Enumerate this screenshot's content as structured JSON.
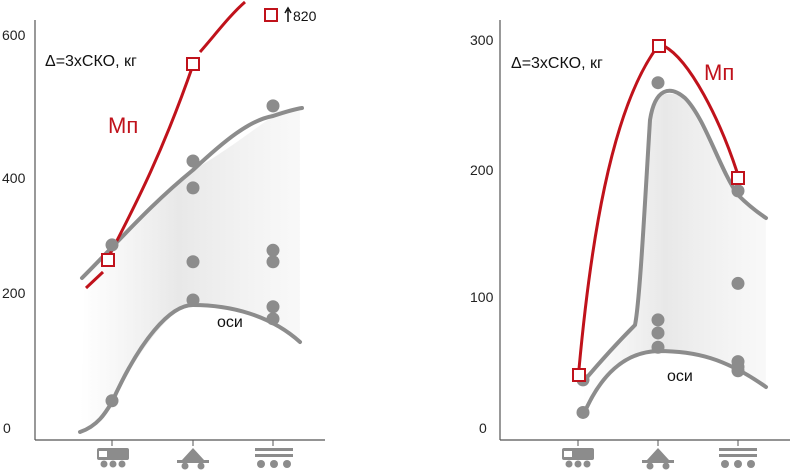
{
  "chart_data": [
    {
      "type": "line",
      "annotation": "Δ=3хСКО, кг",
      "ylim": [
        0,
        600
      ],
      "yticks": [
        "0",
        "200",
        "400",
        "600"
      ],
      "x_positions": [
        1,
        2,
        3
      ],
      "series": [
        {
          "name": "Мп",
          "x": [
            1,
            2
          ],
          "values": [
            268,
            568
          ]
        },
        {
          "name": "оси",
          "x": [
            1,
            2,
            3
          ],
          "values": [
            48,
            198,
            170
          ]
        }
      ],
      "upper_band": {
        "x": [
          1,
          2,
          3
        ],
        "values": [
          280,
          405,
          487
        ]
      },
      "scatter": [
        {
          "x": 1,
          "y": 48
        },
        {
          "x": 1,
          "y": 280
        },
        {
          "x": 2,
          "y": 405
        },
        {
          "x": 2,
          "y": 365
        },
        {
          "x": 2,
          "y": 255
        },
        {
          "x": 2,
          "y": 198
        },
        {
          "x": 3,
          "y": 487
        },
        {
          "x": 3,
          "y": 272
        },
        {
          "x": 3,
          "y": 255
        },
        {
          "x": 3,
          "y": 188
        },
        {
          "x": 3,
          "y": 170
        }
      ],
      "offchart_marker": {
        "label": "820",
        "value": 820
      }
    },
    {
      "type": "line",
      "annotation": "Δ=3хСКО, кг",
      "ylim": [
        0,
        300
      ],
      "yticks": [
        "0",
        "100",
        "200",
        "300"
      ],
      "x_positions": [
        1,
        2,
        3
      ],
      "series": [
        {
          "name": "Мп",
          "x": [
            1,
            2,
            3
          ],
          "values": [
            45,
            302,
            197
          ]
        },
        {
          "name": "оси",
          "x": [
            1,
            2,
            3
          ],
          "values": [
            40,
            65,
            50
          ]
        }
      ],
      "upper_band": {
        "x": [
          1,
          2,
          3
        ],
        "values": [
          40,
          268,
          185
        ]
      },
      "scatter": [
        {
          "x": 1,
          "y": 40
        },
        {
          "x": 1,
          "y": 15
        },
        {
          "x": 2,
          "y": 268
        },
        {
          "x": 2,
          "y": 86
        },
        {
          "x": 2,
          "y": 76
        },
        {
          "x": 2,
          "y": 65
        },
        {
          "x": 3,
          "y": 185
        },
        {
          "x": 3,
          "y": 114
        },
        {
          "x": 3,
          "y": 54
        },
        {
          "x": 3,
          "y": 50
        },
        {
          "x": 3,
          "y": 47
        }
      ]
    }
  ],
  "legend_colors": {
    "mp": "#c0121b",
    "osi": "#8c8c8c",
    "band": "#e2e2e2"
  },
  "icons": [
    "locomotive-icon",
    "wagon-icon",
    "triple-axle-icon"
  ]
}
